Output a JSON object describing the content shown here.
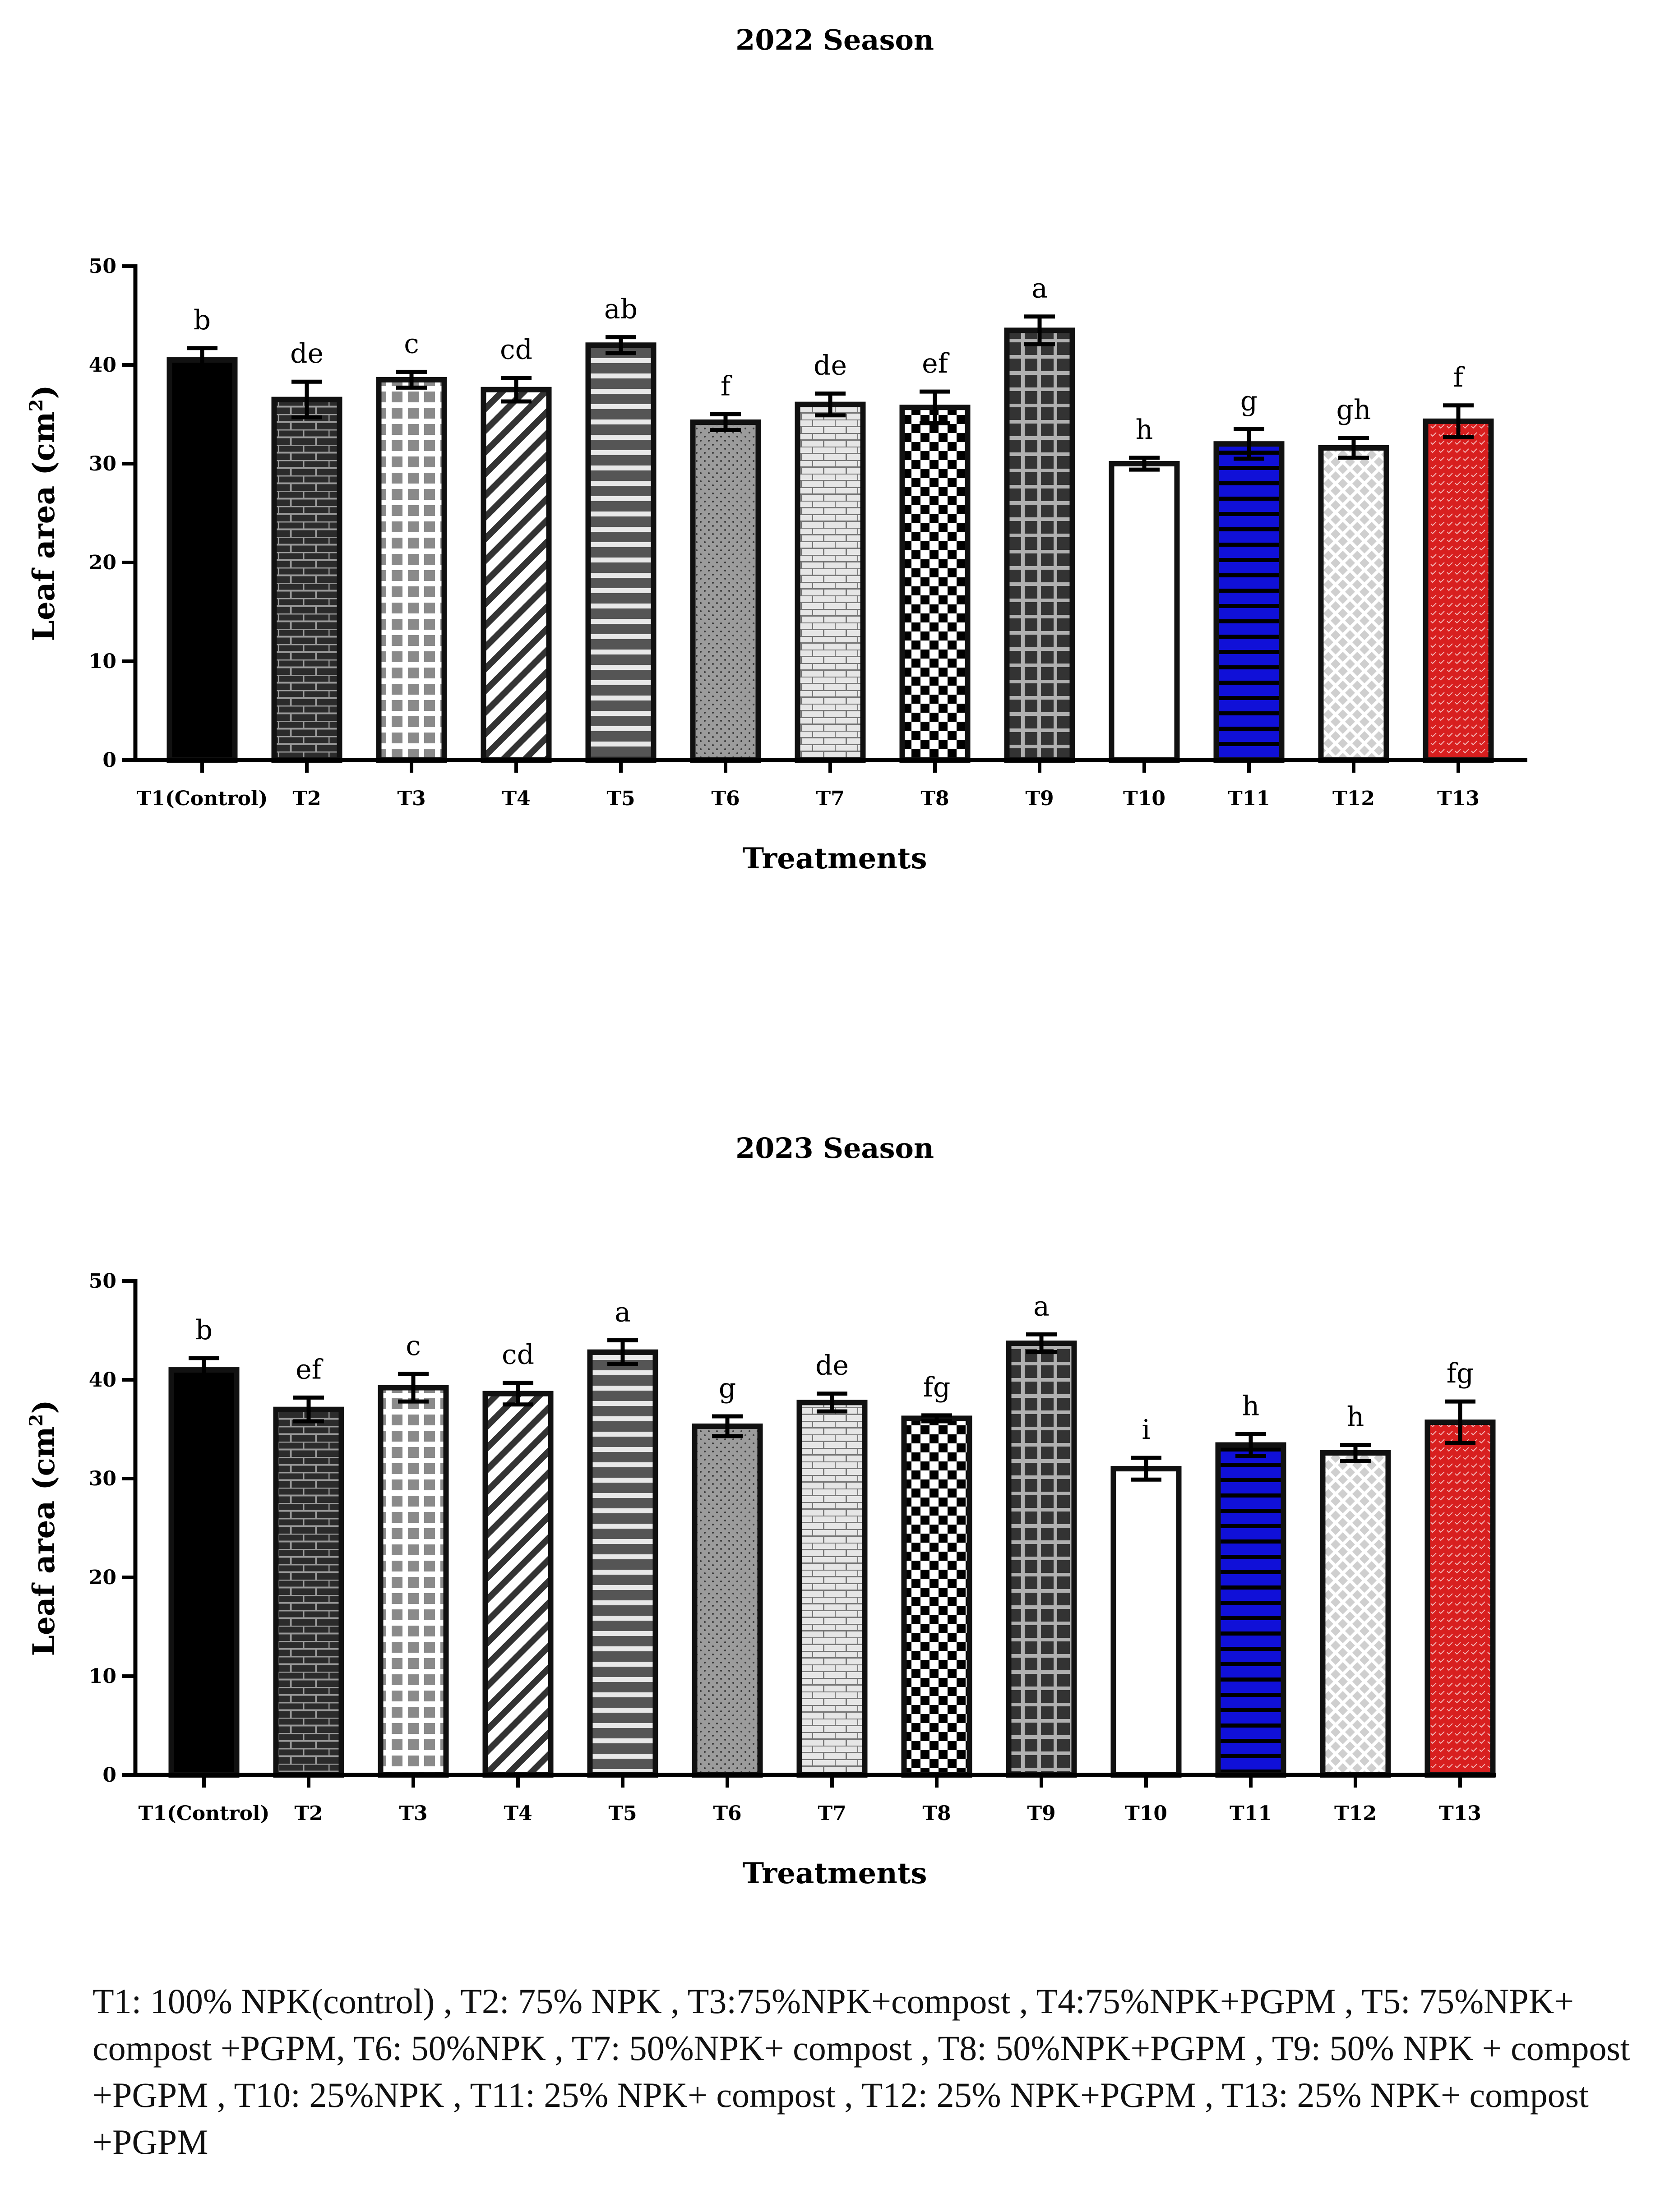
{
  "chart_data": [
    {
      "type": "bar",
      "title": "2022 Season",
      "xlabel": "Treatments",
      "ylabel": {
        "main": "Leaf area (cm",
        "sup": "2",
        "close": ")"
      },
      "ylim": [
        0,
        50
      ],
      "yticks": [
        "0",
        "10",
        "20",
        "30",
        "40",
        "50"
      ],
      "categories": [
        "T1(Control)",
        "T2",
        "T3",
        "T4",
        "T5",
        "T6",
        "T7",
        "T8",
        "T9",
        "T10",
        "T11",
        "T12",
        "T13"
      ],
      "values": [
        40.5,
        36.5,
        38.5,
        37.5,
        42.0,
        34.2,
        36.0,
        35.7,
        43.5,
        30.0,
        32.0,
        31.6,
        34.3
      ],
      "errors": [
        1.2,
        1.8,
        0.8,
        1.2,
        0.8,
        0.8,
        1.1,
        1.6,
        1.4,
        0.6,
        1.5,
        1.0,
        1.6
      ],
      "significance": [
        "b",
        "de",
        "c",
        "cd",
        "ab",
        "f",
        "de",
        "ef",
        "a",
        "h",
        "g",
        "gh",
        "f"
      ]
    },
    {
      "type": "bar",
      "title": "2023 Season",
      "xlabel": "Treatments",
      "ylabel": {
        "main": "Leaf area (cm",
        "sup": "2",
        "close": ")"
      },
      "ylim": [
        0,
        50
      ],
      "yticks": [
        "0",
        "10",
        "20",
        "30",
        "40",
        "50"
      ],
      "categories": [
        "T1(Control)",
        "T2",
        "T3",
        "T4",
        "T5",
        "T6",
        "T7",
        "T8",
        "T9",
        "T10",
        "T11",
        "T12",
        "T13"
      ],
      "values": [
        41.0,
        37.0,
        39.2,
        38.6,
        42.8,
        35.3,
        37.7,
        36.1,
        43.7,
        31.0,
        33.4,
        32.6,
        35.7
      ],
      "errors": [
        1.2,
        1.2,
        1.4,
        1.1,
        1.2,
        1.0,
        0.9,
        0.3,
        0.9,
        1.1,
        1.1,
        0.8,
        2.1
      ],
      "significance": [
        "b",
        "ef",
        "c",
        "cd",
        "a",
        "g",
        "de",
        "fg",
        "a",
        "i",
        "h",
        "h",
        "fg"
      ]
    }
  ],
  "colors": {
    "axis": "#000000",
    "bar_outline": "#111111",
    "t11_fill": "#1010d8",
    "t13_fill": "#d81f1f"
  },
  "caption": "T1: 100% NPK(control) ,  T2: 75% NPK ,     T3:75%NPK+compost ,  T4:75%NPK+PGPM   ,  T5: 75%NPK+ compost +PGPM,  T6: 50%NPK , T7: 50%NPK+ compost ,  T8: 50%NPK+PGPM , T9: 50% NPK + compost +PGPM ,   T10: 25%NPK ,   T11: 25% NPK+ compost , T12: 25% NPK+PGPM ,   T13: 25% NPK+ compost +PGPM"
}
